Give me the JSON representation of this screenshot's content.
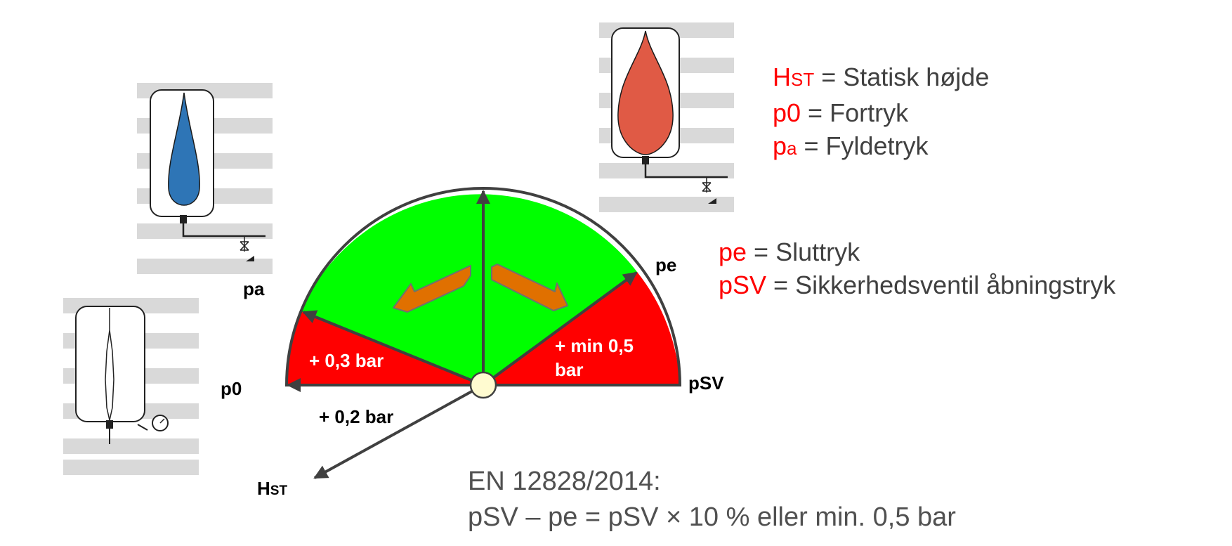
{
  "legend_top": [
    {
      "sym": "H",
      "sub": "ST",
      "text": " = Statisk højde"
    },
    {
      "sym": "p0",
      "sub": "",
      "text": " = Fortryk"
    },
    {
      "sym": "p",
      "sub": "a",
      "text": " = Fyldetryk"
    }
  ],
  "legend_mid": [
    {
      "sym": "pe",
      "text": " = Sluttryk"
    },
    {
      "sym": "pSV",
      "text": " = Sikkerhedsventil åbningstryk"
    }
  ],
  "labels": {
    "pa": "pa",
    "p0": "p0",
    "pe": "pe",
    "psv": "pSV",
    "hst_main": "H",
    "hst_sub": "ST",
    "plus_02": "+ 0,2 bar",
    "plus_03": "+ 0,3 bar",
    "plus_min05_line1": "+ min 0,5",
    "plus_min05_line2": "bar"
  },
  "norm": {
    "line1": "EN 12828/2014:",
    "line2": "pSV – pe  = pSV  × 10 % eller min. 0,5 bar"
  },
  "colors": {
    "green_zone": "#00ff00",
    "red_zone": "#ff0000",
    "arrow_orange": "#e07000",
    "vessel_blue": "#2e75b6",
    "vessel_red": "#e05a45",
    "symbol_red": "#ff0000",
    "text_gray": "#404040"
  }
}
